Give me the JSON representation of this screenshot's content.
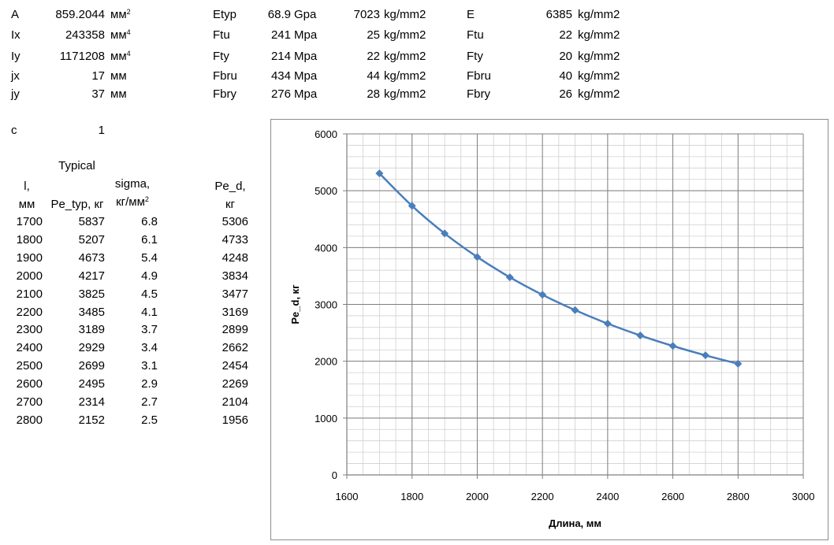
{
  "props": [
    {
      "name": "A",
      "value": "859.2044",
      "unit": "мм",
      "sup": "2"
    },
    {
      "name": "Ix",
      "value": "243358",
      "unit": "мм",
      "sup": "4"
    },
    {
      "name": "Iy",
      "value": "1171208",
      "unit": "мм",
      "sup": "4"
    },
    {
      "name": "jx",
      "value": "17",
      "unit": "мм",
      "sup": ""
    },
    {
      "name": "jy",
      "value": "37",
      "unit": "мм",
      "sup": ""
    }
  ],
  "typical": [
    {
      "name": "Etyp",
      "value": "68.9",
      "unit": "Gpa",
      "kg": "7023",
      "kgunit": "kg/mm2"
    },
    {
      "name": "Ftu",
      "value": "241",
      "unit": "Mpa",
      "kg": "25",
      "kgunit": "kg/mm2"
    },
    {
      "name": "Fty",
      "value": "214",
      "unit": "Mpa",
      "kg": "22",
      "kgunit": "kg/mm2"
    },
    {
      "name": "Fbru",
      "value": "434",
      "unit": "Mpa",
      "kg": "44",
      "kgunit": "kg/mm2"
    },
    {
      "name": "Fbry",
      "value": "276",
      "unit": "Mpa",
      "kg": "28",
      "kgunit": "kg/mm2"
    }
  ],
  "design": [
    {
      "name": "E",
      "value": "6385",
      "unit": "kg/mm2"
    },
    {
      "name": "Ftu",
      "value": "22",
      "unit": "kg/mm2"
    },
    {
      "name": "Fty",
      "value": "20",
      "unit": "kg/mm2"
    },
    {
      "name": "Fbru",
      "value": "40",
      "unit": "kg/mm2"
    },
    {
      "name": "Fbry",
      "value": "26",
      "unit": "kg/mm2"
    }
  ],
  "c_label": "c",
  "c_value": "1",
  "table": {
    "header_typical": "Typical",
    "h_l": "l,",
    "h_l_unit": "мм",
    "h_pe_typ": "Pe_typ, кг",
    "h_sigma": "sigma,",
    "h_sigma_unit": "кг/мм",
    "h_sigma_sup": "2",
    "h_ped": "Pe_d,",
    "h_ped_unit": "кг",
    "rows": [
      {
        "l": "1700",
        "pe_typ": "5837",
        "sigma": "6.8",
        "pe_d": "5306"
      },
      {
        "l": "1800",
        "pe_typ": "5207",
        "sigma": "6.1",
        "pe_d": "4733"
      },
      {
        "l": "1900",
        "pe_typ": "4673",
        "sigma": "5.4",
        "pe_d": "4248"
      },
      {
        "l": "2000",
        "pe_typ": "4217",
        "sigma": "4.9",
        "pe_d": "3834"
      },
      {
        "l": "2100",
        "pe_typ": "3825",
        "sigma": "4.5",
        "pe_d": "3477"
      },
      {
        "l": "2200",
        "pe_typ": "3485",
        "sigma": "4.1",
        "pe_d": "3169"
      },
      {
        "l": "2300",
        "pe_typ": "3189",
        "sigma": "3.7",
        "pe_d": "2899"
      },
      {
        "l": "2400",
        "pe_typ": "2929",
        "sigma": "3.4",
        "pe_d": "2662"
      },
      {
        "l": "2500",
        "pe_typ": "2699",
        "sigma": "3.1",
        "pe_d": "2454"
      },
      {
        "l": "2600",
        "pe_typ": "2495",
        "sigma": "2.9",
        "pe_d": "2269"
      },
      {
        "l": "2700",
        "pe_typ": "2314",
        "sigma": "2.7",
        "pe_d": "2104"
      },
      {
        "l": "2800",
        "pe_typ": "2152",
        "sigma": "2.5",
        "pe_d": "1956"
      }
    ]
  },
  "chart_data": {
    "type": "line",
    "title": "",
    "xlabel": "Длина, мм",
    "ylabel": "Pe_d, кг",
    "xlim": [
      1600,
      3000
    ],
    "ylim": [
      0,
      6000
    ],
    "xticks": [
      1600,
      1800,
      2000,
      2200,
      2400,
      2600,
      2800,
      3000
    ],
    "yticks": [
      0,
      1000,
      2000,
      3000,
      4000,
      5000,
      6000
    ],
    "x_minor_step": 50,
    "y_minor_step": 200,
    "grid": true,
    "legend": "none",
    "marker": "diamond",
    "color": "#4a7ebb",
    "series": [
      {
        "x": [
          1700,
          1800,
          1900,
          2000,
          2100,
          2200,
          2300,
          2400,
          2500,
          2600,
          2700,
          2800
        ],
        "values": [
          5306,
          4733,
          4248,
          3834,
          3477,
          3169,
          2899,
          2662,
          2454,
          2269,
          2104,
          1956
        ]
      }
    ]
  }
}
